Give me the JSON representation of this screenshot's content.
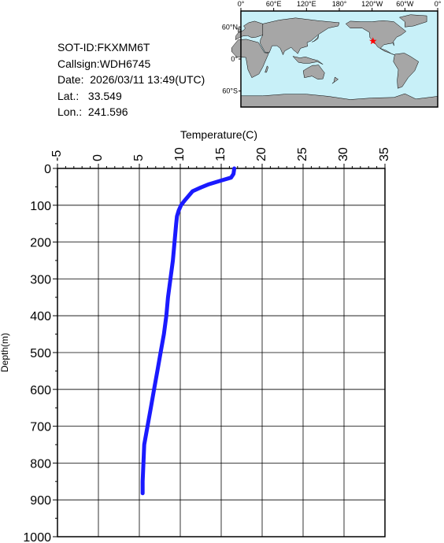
{
  "info": {
    "sot_id": "SOT-ID:FKXMM6T",
    "callsign": "Callsign:WDH6745",
    "date": "Date:  2026/03/11 13:49(UTC)",
    "lat": "Lat.:   33.549",
    "lon": "Lon.:  241.596"
  },
  "map": {
    "lon_labels": [
      "0°",
      "60°E",
      "120°E",
      "180°",
      "120°W",
      "60°W",
      "0°"
    ],
    "lat_labels": [
      "60°N",
      "0°",
      "60°S"
    ],
    "marker_lat": 33.549,
    "marker_lon": 241.596,
    "ocean_color": "#c8f0f8",
    "land_color": "#a6a6a6",
    "marker_color": "#ff0000"
  },
  "chart_data": {
    "type": "line",
    "xlabel": "Temperature(C)",
    "ylabel": "Depth(m)",
    "xlim": [
      -5,
      35
    ],
    "ylim": [
      0,
      1000
    ],
    "y_inverted": true,
    "x_axis_position": "top",
    "grid": true,
    "x_ticks": [
      "-5",
      "0",
      "5",
      "10",
      "15",
      "20",
      "25",
      "30",
      "35"
    ],
    "y_ticks": [
      "0",
      "100",
      "200",
      "300",
      "400",
      "500",
      "600",
      "700",
      "800",
      "900",
      "1000"
    ],
    "series": [
      {
        "color": "#1a1aff",
        "points": [
          [
            16.6,
            0
          ],
          [
            16.5,
            15
          ],
          [
            16.2,
            25
          ],
          [
            15.0,
            33
          ],
          [
            13.5,
            43
          ],
          [
            12.5,
            52
          ],
          [
            11.5,
            62
          ],
          [
            11.0,
            75
          ],
          [
            10.5,
            88
          ],
          [
            10.1,
            100
          ],
          [
            9.8,
            115
          ],
          [
            9.6,
            130
          ],
          [
            9.5,
            150
          ],
          [
            9.3,
            200
          ],
          [
            9.1,
            250
          ],
          [
            8.8,
            300
          ],
          [
            8.5,
            350
          ],
          [
            8.3,
            400
          ],
          [
            8.0,
            450
          ],
          [
            7.6,
            500
          ],
          [
            7.2,
            550
          ],
          [
            6.8,
            600
          ],
          [
            6.4,
            650
          ],
          [
            6.0,
            700
          ],
          [
            5.6,
            750
          ],
          [
            5.5,
            800
          ],
          [
            5.4,
            850
          ],
          [
            5.4,
            882
          ]
        ]
      }
    ]
  }
}
